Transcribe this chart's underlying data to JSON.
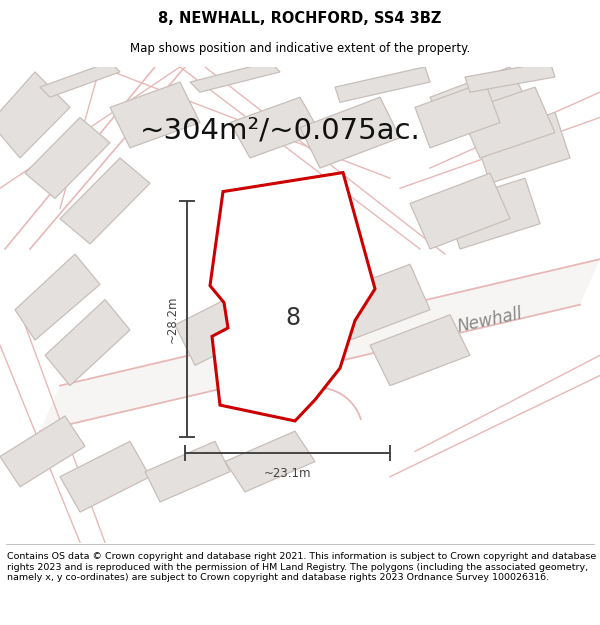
{
  "title": "8, NEWHALL, ROCHFORD, SS4 3BZ",
  "subtitle": "Map shows position and indicative extent of the property.",
  "area_text": "~304m²/~0.075ac.",
  "label_8": "8",
  "dim_horiz": "~23.1m",
  "dim_vert": "~28.2m",
  "road_label": "Newhall",
  "footer": "Contains OS data © Crown copyright and database right 2021. This information is subject to Crown copyright and database rights 2023 and is reproduced with the permission of HM Land Registry. The polygons (including the associated geometry, namely x, y co-ordinates) are subject to Crown copyright and database rights 2023 Ordnance Survey 100026316.",
  "bg_color": "#f7f5f3",
  "plot_fill": "#ffffff",
  "plot_edge": "#cc0000",
  "neighbor_fill": "#e3e0dd",
  "neighbor_edge": "#c8bfbb",
  "road_fill": "#f7f5f3",
  "road_line_color": "#e8b8b8",
  "road_edge_color": "#dda8a8",
  "dim_line_color": "#444444",
  "title_fontsize": 10.5,
  "subtitle_fontsize": 8.5,
  "area_fontsize": 21,
  "label_fontsize": 17,
  "road_fontsize": 12,
  "dim_fontsize": 8.5,
  "footer_fontsize": 6.8
}
